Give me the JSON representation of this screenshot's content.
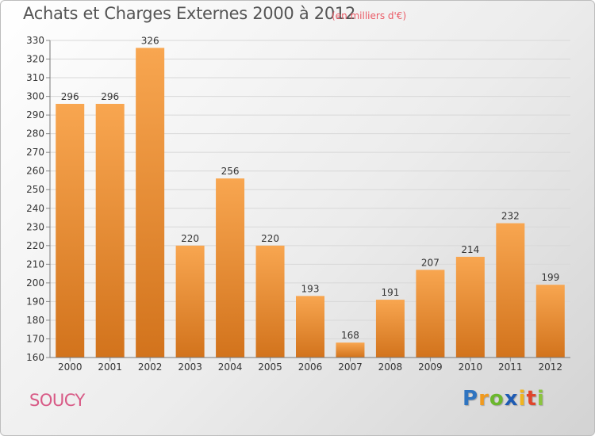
{
  "title": "Achats et Charges Externes 2000 à 2012",
  "unit_note": "(en milliers d'€)",
  "commune": "SOUCY",
  "logo": {
    "letters": [
      "P",
      "r",
      "o",
      "x",
      "i",
      "t",
      "i"
    ],
    "colors": [
      "#2f74c0",
      "#f09a1f",
      "#6bb72d",
      "#1e5bb3",
      "#f0b41f",
      "#e0452b",
      "#8ac43f"
    ]
  },
  "colors": {
    "bar_top": "#f8a650",
    "bar_bottom": "#d2731c",
    "title": "#555555",
    "unit": "#ea5b66",
    "commune": "#d85a86",
    "axis_text": "#333333"
  },
  "chart_data": {
    "type": "bar",
    "categories": [
      "2000",
      "2001",
      "2002",
      "2003",
      "2004",
      "2005",
      "2006",
      "2007",
      "2008",
      "2009",
      "2010",
      "2011",
      "2012"
    ],
    "values": [
      296,
      296,
      326,
      220,
      256,
      220,
      193,
      168,
      191,
      207,
      214,
      232,
      199
    ],
    "ylim": [
      160,
      330
    ],
    "yticks": [
      160,
      170,
      180,
      190,
      200,
      210,
      220,
      230,
      240,
      250,
      260,
      270,
      280,
      290,
      300,
      310,
      320,
      330
    ],
    "grid": true,
    "legend": "none"
  }
}
